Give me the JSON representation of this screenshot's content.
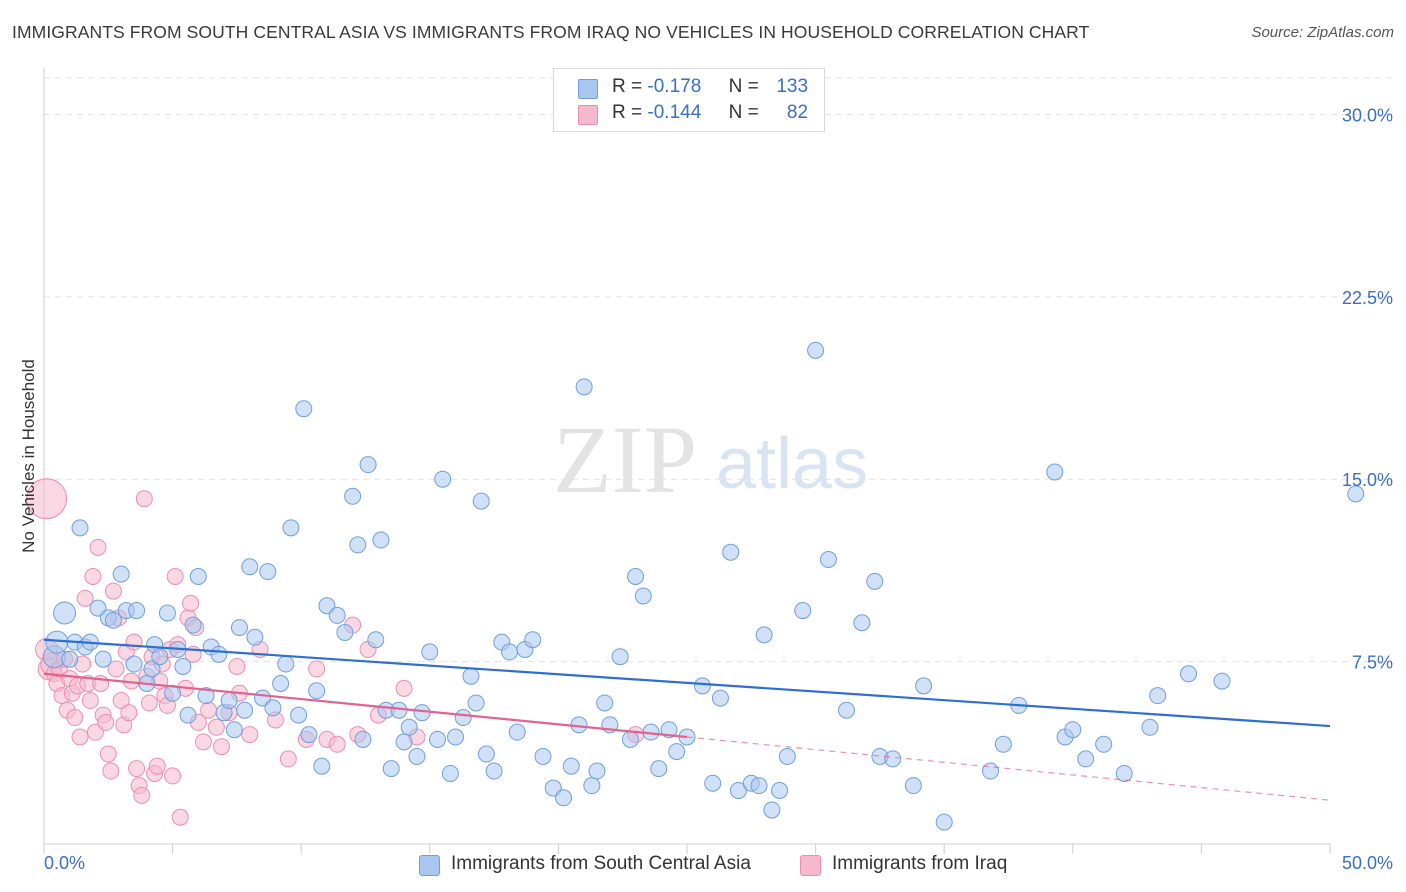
{
  "title": "IMMIGRANTS FROM SOUTH CENTRAL ASIA VS IMMIGRANTS FROM IRAQ NO VEHICLES IN HOUSEHOLD CORRELATION CHART",
  "source": "Source: ZipAtlas.com",
  "watermark": {
    "zip": "ZIP",
    "atlas": "atlas"
  },
  "legend": {
    "r_label": "R =",
    "n_label": "N =",
    "rows": [
      {
        "r": "-0.178",
        "n": "133",
        "color": "#a9c6ee"
      },
      {
        "r": "-0.144",
        "n": "82",
        "color": "#f6b8cc"
      }
    ]
  },
  "colors": {
    "blue_fill": "#a9c6ee",
    "blue_stroke": "#6f9fde",
    "blue_line": "#2f6fcf",
    "pink_fill": "#f6b8cc",
    "pink_stroke": "#ec8fae",
    "pink_line": "#e3628e",
    "tick_text": "#3b6fc4",
    "grid": "#e2e2e2"
  },
  "chart_data": {
    "type": "scatter",
    "title": "IMMIGRANTS FROM SOUTH CENTRAL ASIA VS IMMIGRANTS FROM IRAQ NO VEHICLES IN HOUSEHOLD CORRELATION CHART",
    "xlabel": "",
    "ylabel": "No Vehicles in Household",
    "xlim": [
      0,
      50
    ],
    "ylim": [
      0,
      31.5
    ],
    "x_tick_labels": [
      "0.0%",
      "50.0%"
    ],
    "y_ticks": [
      7.5,
      15.0,
      22.5,
      30.0
    ],
    "y_tick_labels": [
      "7.5%",
      "15.0%",
      "22.5%",
      "30.0%"
    ],
    "grid": true,
    "legend_position": "top-center",
    "series": [
      {
        "name": "Immigrants from South Central Asia",
        "r": -0.178,
        "n": 133,
        "trend": {
          "x": [
            0,
            50
          ],
          "y": [
            8.4,
            4.85
          ]
        },
        "points": [
          [
            0.4,
            7.7
          ],
          [
            0.5,
            8.3
          ],
          [
            0.8,
            9.5
          ],
          [
            1.0,
            7.6
          ],
          [
            1.2,
            8.3
          ],
          [
            1.4,
            13.0
          ],
          [
            1.6,
            8.1
          ],
          [
            1.8,
            8.3
          ],
          [
            2.1,
            9.7
          ],
          [
            2.3,
            7.6
          ],
          [
            2.5,
            9.3
          ],
          [
            2.7,
            9.2
          ],
          [
            3.0,
            11.1
          ],
          [
            3.2,
            9.6
          ],
          [
            3.5,
            7.4
          ],
          [
            3.6,
            9.6
          ],
          [
            4.0,
            6.6
          ],
          [
            4.2,
            7.2
          ],
          [
            4.3,
            8.2
          ],
          [
            4.5,
            7.7
          ],
          [
            4.8,
            9.5
          ],
          [
            5.0,
            6.2
          ],
          [
            5.2,
            8.0
          ],
          [
            5.4,
            7.3
          ],
          [
            5.6,
            5.3
          ],
          [
            5.8,
            9.0
          ],
          [
            6.0,
            11.0
          ],
          [
            6.3,
            6.1
          ],
          [
            6.5,
            8.1
          ],
          [
            6.8,
            7.8
          ],
          [
            7.0,
            5.4
          ],
          [
            7.2,
            5.9
          ],
          [
            7.4,
            4.7
          ],
          [
            7.6,
            8.9
          ],
          [
            7.8,
            5.5
          ],
          [
            8.0,
            11.4
          ],
          [
            8.2,
            8.5
          ],
          [
            8.5,
            6.0
          ],
          [
            8.7,
            11.2
          ],
          [
            8.9,
            5.6
          ],
          [
            9.2,
            6.6
          ],
          [
            9.4,
            7.4
          ],
          [
            9.6,
            13.0
          ],
          [
            9.9,
            5.3
          ],
          [
            10.1,
            17.9
          ],
          [
            10.3,
            4.5
          ],
          [
            10.6,
            6.3
          ],
          [
            10.8,
            3.2
          ],
          [
            11.0,
            9.8
          ],
          [
            11.4,
            9.4
          ],
          [
            11.7,
            8.7
          ],
          [
            12.0,
            14.3
          ],
          [
            12.2,
            12.3
          ],
          [
            12.4,
            4.3
          ],
          [
            12.6,
            15.6
          ],
          [
            12.9,
            8.4
          ],
          [
            13.1,
            12.5
          ],
          [
            13.3,
            5.5
          ],
          [
            13.5,
            3.1
          ],
          [
            13.8,
            5.5
          ],
          [
            14.0,
            4.2
          ],
          [
            14.2,
            4.8
          ],
          [
            14.5,
            3.6
          ],
          [
            14.7,
            5.4
          ],
          [
            15.0,
            7.9
          ],
          [
            15.3,
            4.3
          ],
          [
            15.5,
            15.0
          ],
          [
            15.8,
            2.9
          ],
          [
            16.0,
            4.4
          ],
          [
            16.3,
            5.2
          ],
          [
            16.6,
            6.9
          ],
          [
            16.8,
            5.8
          ],
          [
            17.0,
            14.1
          ],
          [
            17.2,
            3.7
          ],
          [
            17.5,
            3.0
          ],
          [
            17.8,
            8.3
          ],
          [
            18.1,
            7.9
          ],
          [
            18.4,
            4.6
          ],
          [
            18.7,
            8.0
          ],
          [
            19.0,
            8.4
          ],
          [
            19.4,
            3.6
          ],
          [
            19.8,
            2.3
          ],
          [
            20.2,
            1.9
          ],
          [
            20.5,
            3.2
          ],
          [
            20.8,
            4.9
          ],
          [
            21.0,
            18.8
          ],
          [
            21.3,
            2.4
          ],
          [
            21.5,
            3.0
          ],
          [
            21.8,
            5.8
          ],
          [
            22.0,
            4.9
          ],
          [
            22.4,
            7.7
          ],
          [
            22.8,
            4.3
          ],
          [
            23.0,
            11.0
          ],
          [
            23.3,
            10.2
          ],
          [
            23.6,
            4.6
          ],
          [
            23.9,
            3.1
          ],
          [
            24.3,
            4.7
          ],
          [
            24.6,
            3.8
          ],
          [
            25.0,
            4.4
          ],
          [
            25.6,
            6.5
          ],
          [
            26.0,
            2.5
          ],
          [
            26.3,
            6.0
          ],
          [
            26.7,
            12.0
          ],
          [
            27.0,
            2.2
          ],
          [
            27.5,
            2.5
          ],
          [
            27.8,
            2.4
          ],
          [
            28.0,
            8.6
          ],
          [
            28.3,
            1.4
          ],
          [
            28.6,
            2.2
          ],
          [
            28.9,
            3.6
          ],
          [
            29.5,
            9.6
          ],
          [
            30.0,
            20.3
          ],
          [
            30.5,
            11.7
          ],
          [
            31.2,
            5.5
          ],
          [
            31.8,
            9.1
          ],
          [
            32.3,
            10.8
          ],
          [
            32.5,
            3.6
          ],
          [
            33.0,
            3.5
          ],
          [
            33.8,
            2.4
          ],
          [
            34.2,
            6.5
          ],
          [
            35.0,
            0.9
          ],
          [
            36.8,
            3.0
          ],
          [
            37.3,
            4.1
          ],
          [
            37.9,
            5.7
          ],
          [
            39.3,
            15.3
          ],
          [
            39.7,
            4.4
          ],
          [
            40.0,
            4.7
          ],
          [
            40.5,
            3.5
          ],
          [
            41.2,
            4.1
          ],
          [
            42.0,
            2.9
          ],
          [
            43.0,
            4.8
          ],
          [
            43.3,
            6.1
          ],
          [
            44.5,
            7.0
          ],
          [
            45.8,
            6.7
          ],
          [
            51.0,
            14.4
          ]
        ]
      },
      {
        "name": "Immigrants from Iraq",
        "r": -0.144,
        "n": 82,
        "trend": {
          "x": [
            0,
            25
          ],
          "y": [
            7.0,
            4.4
          ]
        },
        "trend_dashed": {
          "x": [
            25,
            50
          ],
          "y": [
            4.4,
            1.8
          ]
        },
        "points": [
          [
            0.1,
            14.2
          ],
          [
            0.1,
            8.0
          ],
          [
            0.2,
            7.2
          ],
          [
            0.3,
            7.4
          ],
          [
            0.4,
            7.0
          ],
          [
            0.5,
            6.6
          ],
          [
            0.6,
            7.2
          ],
          [
            0.7,
            6.1
          ],
          [
            0.8,
            7.6
          ],
          [
            0.9,
            5.5
          ],
          [
            1.0,
            6.8
          ],
          [
            1.1,
            6.2
          ],
          [
            1.2,
            5.2
          ],
          [
            1.3,
            6.5
          ],
          [
            1.4,
            4.4
          ],
          [
            1.5,
            7.4
          ],
          [
            1.6,
            10.1
          ],
          [
            1.7,
            6.6
          ],
          [
            1.8,
            5.9
          ],
          [
            1.9,
            11.0
          ],
          [
            2.0,
            4.6
          ],
          [
            2.1,
            12.2
          ],
          [
            2.2,
            6.6
          ],
          [
            2.3,
            5.3
          ],
          [
            2.4,
            5.0
          ],
          [
            2.5,
            3.7
          ],
          [
            2.6,
            3.0
          ],
          [
            2.7,
            10.4
          ],
          [
            2.8,
            7.2
          ],
          [
            2.9,
            9.3
          ],
          [
            3.0,
            5.9
          ],
          [
            3.1,
            4.9
          ],
          [
            3.2,
            7.9
          ],
          [
            3.3,
            5.4
          ],
          [
            3.4,
            6.7
          ],
          [
            3.5,
            8.3
          ],
          [
            3.6,
            3.1
          ],
          [
            3.7,
            2.4
          ],
          [
            3.8,
            2.0
          ],
          [
            3.9,
            14.2
          ],
          [
            4.0,
            6.9
          ],
          [
            4.1,
            5.8
          ],
          [
            4.2,
            7.7
          ],
          [
            4.3,
            2.9
          ],
          [
            4.4,
            3.2
          ],
          [
            4.5,
            6.7
          ],
          [
            4.6,
            7.4
          ],
          [
            4.7,
            6.1
          ],
          [
            4.8,
            5.7
          ],
          [
            4.9,
            8.0
          ],
          [
            5.0,
            2.8
          ],
          [
            5.1,
            11.0
          ],
          [
            5.2,
            8.2
          ],
          [
            5.3,
            1.1
          ],
          [
            5.5,
            6.4
          ],
          [
            5.6,
            9.3
          ],
          [
            5.7,
            9.9
          ],
          [
            5.8,
            7.8
          ],
          [
            5.9,
            8.9
          ],
          [
            6.0,
            5.0
          ],
          [
            6.2,
            4.2
          ],
          [
            6.4,
            5.5
          ],
          [
            6.7,
            4.8
          ],
          [
            6.9,
            4.0
          ],
          [
            7.2,
            5.4
          ],
          [
            7.5,
            7.3
          ],
          [
            7.6,
            6.2
          ],
          [
            8.0,
            4.5
          ],
          [
            8.4,
            8.0
          ],
          [
            9.0,
            5.1
          ],
          [
            9.5,
            3.5
          ],
          [
            10.2,
            4.3
          ],
          [
            10.6,
            7.2
          ],
          [
            11.0,
            4.3
          ],
          [
            11.4,
            4.1
          ],
          [
            12.0,
            9.0
          ],
          [
            12.2,
            4.5
          ],
          [
            12.6,
            8.0
          ],
          [
            13.0,
            5.3
          ],
          [
            14.0,
            6.4
          ],
          [
            14.5,
            4.4
          ],
          [
            23.0,
            4.5
          ]
        ]
      }
    ]
  },
  "bottom_legend": [
    {
      "label": "Immigrants from South Central Asia",
      "color": "#a9c6ee"
    },
    {
      "label": "Immigrants from Iraq",
      "color": "#f6b8cc"
    }
  ]
}
